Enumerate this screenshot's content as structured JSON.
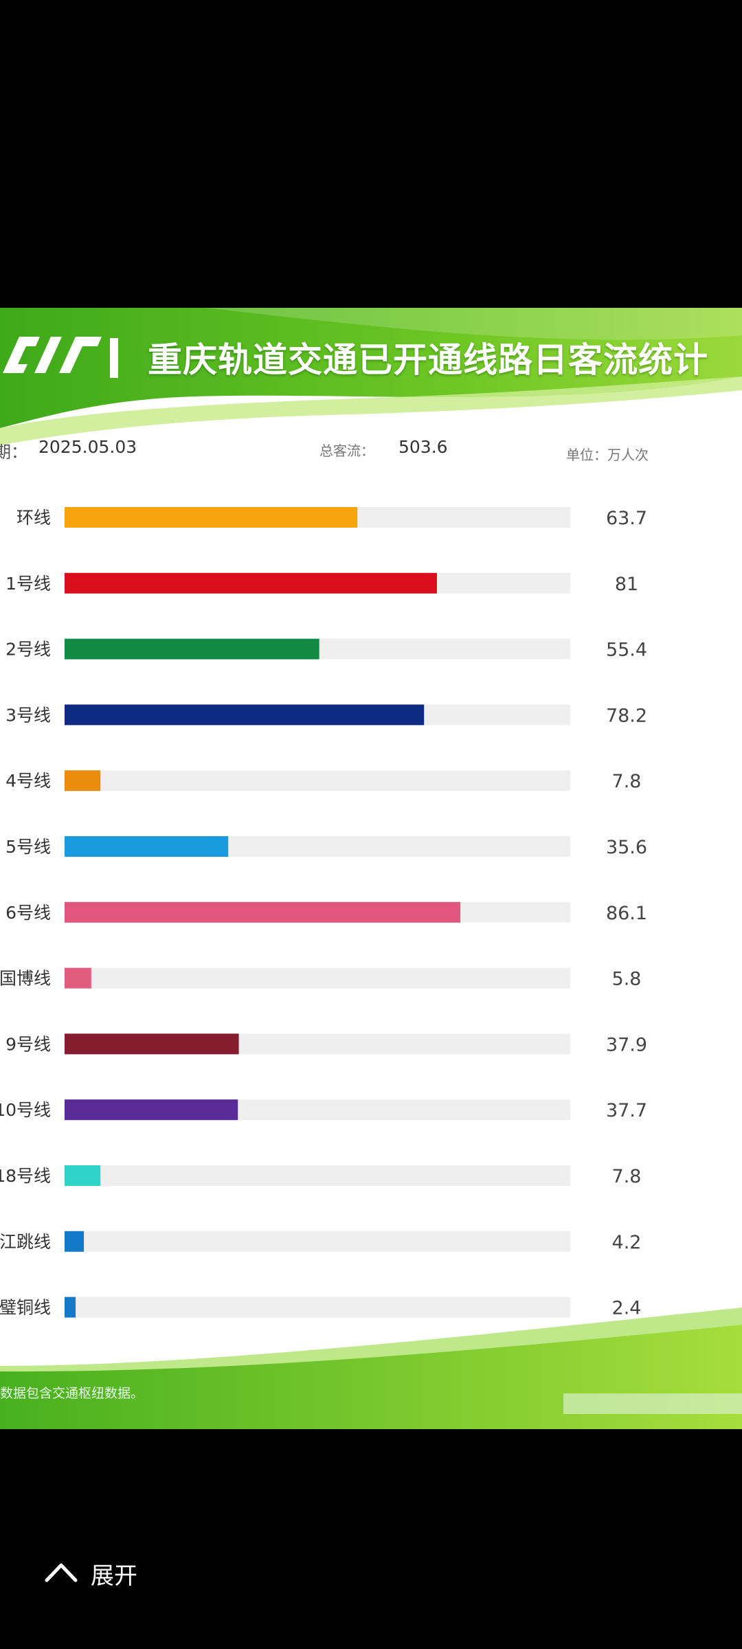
{
  "header": {
    "title": "重庆轨道交通已开通线路日客流统计",
    "logo": "cqrt-logo-icon"
  },
  "info": {
    "date_label": "期：",
    "date": "2025.05.03",
    "total_label": "总客流：",
    "total": "503.6",
    "unit": "单位：万人次"
  },
  "footnote": "数据包含交通枢纽数据。",
  "bottom": {
    "expand_label": "展开",
    "icon": "chevron-up-icon"
  },
  "colors": {
    "bar_track": "#efefef",
    "header_green": "#57b91e"
  },
  "chart_data": {
    "type": "bar",
    "orientation": "horizontal",
    "categories": [
      "环线",
      "1号线",
      "2号线",
      "3号线",
      "4号线",
      "5号线",
      "6号线",
      "国博线",
      "9号线",
      "10号线",
      "18号线",
      "江跳线",
      "璧铜线"
    ],
    "values": [
      63.7,
      81,
      55.4,
      78.2,
      7.8,
      35.6,
      86.1,
      5.8,
      37.9,
      37.7,
      7.8,
      4.2,
      2.4
    ],
    "value_labels": [
      "63.7",
      "81",
      "55.4",
      "78.2",
      "7.8",
      "35.6",
      "86.1",
      "5.8",
      "37.9",
      "37.7",
      "7.8",
      "4.2",
      "2.4"
    ],
    "colors": [
      "#f5a40c",
      "#d90f1d",
      "#138a43",
      "#0d2b83",
      "#ea8c0c",
      "#1a9be0",
      "#e2567e",
      "#e25c7e",
      "#851d2e",
      "#5a2a96",
      "#2fd3c7",
      "#1479c8",
      "#1479c8"
    ],
    "xlim": [
      0,
      110
    ],
    "unit": "万人次"
  }
}
